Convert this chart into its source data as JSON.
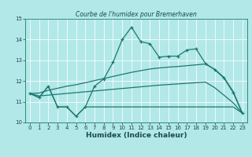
{
  "title": "Courbe de l’humidex pour Bremerhaven",
  "xlabel": "Humidex (Indice chaleur)",
  "background_color": "#b2e8e8",
  "grid_color": "#c8e8e8",
  "line_color": "#1a7a6e",
  "x": [
    0,
    1,
    2,
    3,
    4,
    5,
    6,
    7,
    8,
    9,
    10,
    11,
    12,
    13,
    14,
    15,
    16,
    17,
    18,
    19,
    20,
    21,
    22,
    23
  ],
  "line_main": [
    11.4,
    11.2,
    11.75,
    10.75,
    10.75,
    10.3,
    10.75,
    11.75,
    12.1,
    12.9,
    14.0,
    14.6,
    13.9,
    13.8,
    13.15,
    13.2,
    13.2,
    13.5,
    13.55,
    12.85,
    12.55,
    12.15,
    11.45,
    10.45
  ],
  "line_lower": [
    11.4,
    11.2,
    11.75,
    10.75,
    10.75,
    10.3,
    10.75,
    10.75,
    10.75,
    10.75,
    10.75,
    10.75,
    10.75,
    10.75,
    10.75,
    10.75,
    10.75,
    10.75,
    10.75,
    10.75,
    10.75,
    10.75,
    10.75,
    10.45
  ],
  "line_trend_upper": [
    11.4,
    11.42,
    11.55,
    11.65,
    11.75,
    11.82,
    11.92,
    12.02,
    12.12,
    12.22,
    12.32,
    12.42,
    12.5,
    12.58,
    12.63,
    12.67,
    12.7,
    12.74,
    12.78,
    12.82,
    12.57,
    12.18,
    11.5,
    10.45
  ],
  "line_trend_lower": [
    11.4,
    11.28,
    11.32,
    11.36,
    11.4,
    11.44,
    11.48,
    11.52,
    11.56,
    11.6,
    11.64,
    11.68,
    11.72,
    11.76,
    11.8,
    11.83,
    11.86,
    11.89,
    11.92,
    11.95,
    11.68,
    11.32,
    10.95,
    10.45
  ],
  "ylim": [
    10,
    15
  ],
  "xlim": [
    -0.5,
    23.5
  ],
  "yticks": [
    10,
    11,
    12,
    13,
    14,
    15
  ],
  "xticks": [
    0,
    1,
    2,
    3,
    4,
    5,
    6,
    7,
    8,
    9,
    10,
    11,
    12,
    13,
    14,
    15,
    16,
    17,
    18,
    19,
    20,
    21,
    22,
    23
  ],
  "title_fontsize": 5.5,
  "xlabel_fontsize": 6.5,
  "tick_fontsize": 5.0
}
